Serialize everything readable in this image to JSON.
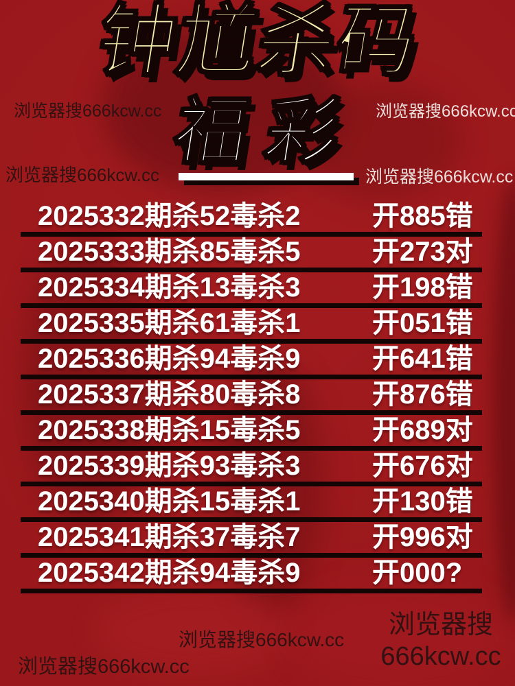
{
  "colors": {
    "background": "#9a181b",
    "title_fill": "#f2ecae",
    "subtitle_fill": "#ffffff",
    "row_text": "#ffffff",
    "line_black": "#140505",
    "watermark_dark": "#2a1111",
    "watermark_light": "#f2e9e6"
  },
  "title": {
    "main": "钟馗杀码",
    "sub": "福彩"
  },
  "watermark": {
    "text": "浏览器搜666kcw.cc",
    "line1": "浏览器搜",
    "line2": "666kcw.cc"
  },
  "table": {
    "rows": [
      {
        "left": "2025332期杀52毒杀2",
        "right": "开885错"
      },
      {
        "left": "2025333期杀85毒杀5",
        "right": "开273对"
      },
      {
        "left": "2025334期杀13毒杀3",
        "right": "开198错"
      },
      {
        "left": "2025335期杀61毒杀1",
        "right": "开051错"
      },
      {
        "left": "2025336期杀94毒杀9",
        "right": "开641错"
      },
      {
        "left": "2025337期杀80毒杀8",
        "right": "开876错"
      },
      {
        "left": "2025338期杀15毒杀5",
        "right": "开689对"
      },
      {
        "left": "2025339期杀93毒杀3",
        "right": "开676对"
      },
      {
        "left": "2025340期杀15毒杀1",
        "right": "开130错"
      },
      {
        "left": "2025341期杀37毒杀7",
        "right": "开996对"
      },
      {
        "left": "2025342期杀94毒杀9",
        "right": "开000?"
      }
    ]
  }
}
